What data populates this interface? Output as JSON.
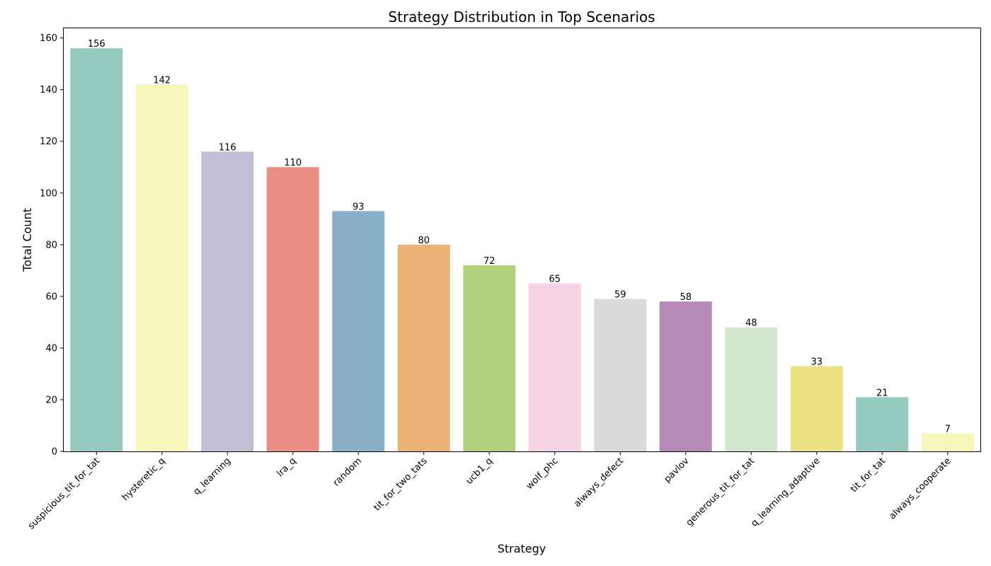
{
  "chart_data": {
    "type": "bar",
    "title": "Strategy Distribution in Top Scenarios",
    "xlabel": "Strategy",
    "ylabel": "Total Count",
    "ylim": [
      0,
      164
    ],
    "yticks": [
      0,
      20,
      40,
      60,
      80,
      100,
      120,
      140,
      160
    ],
    "grid": false,
    "categories": [
      "suspicious_tit_for_tat",
      "hysteretic_q",
      "q_learning",
      "lra_q",
      "random",
      "tit_for_two_tats",
      "ucb1_q",
      "wolf_phc",
      "always_defect",
      "pavlov",
      "generous_tit_for_tat",
      "q_learning_adaptive",
      "tit_for_tat",
      "always_cooperate"
    ],
    "values": [
      156,
      142,
      116,
      110,
      93,
      80,
      72,
      65,
      59,
      58,
      48,
      33,
      21,
      7
    ],
    "data_labels": [
      "156",
      "142",
      "116",
      "110",
      "93",
      "80",
      "72",
      "65",
      "59",
      "58",
      "48",
      "33",
      "21",
      "7"
    ],
    "colors": [
      "#96cac1",
      "#f6f6bc",
      "#c1bed6",
      "#ea8e83",
      "#8aafc9",
      "#eab375",
      "#b1d07b",
      "#f5d3e5",
      "#d9d9d9",
      "#b68ab7",
      "#d0e7cb",
      "#ede283",
      "#96cac1",
      "#f6f6bc"
    ]
  }
}
